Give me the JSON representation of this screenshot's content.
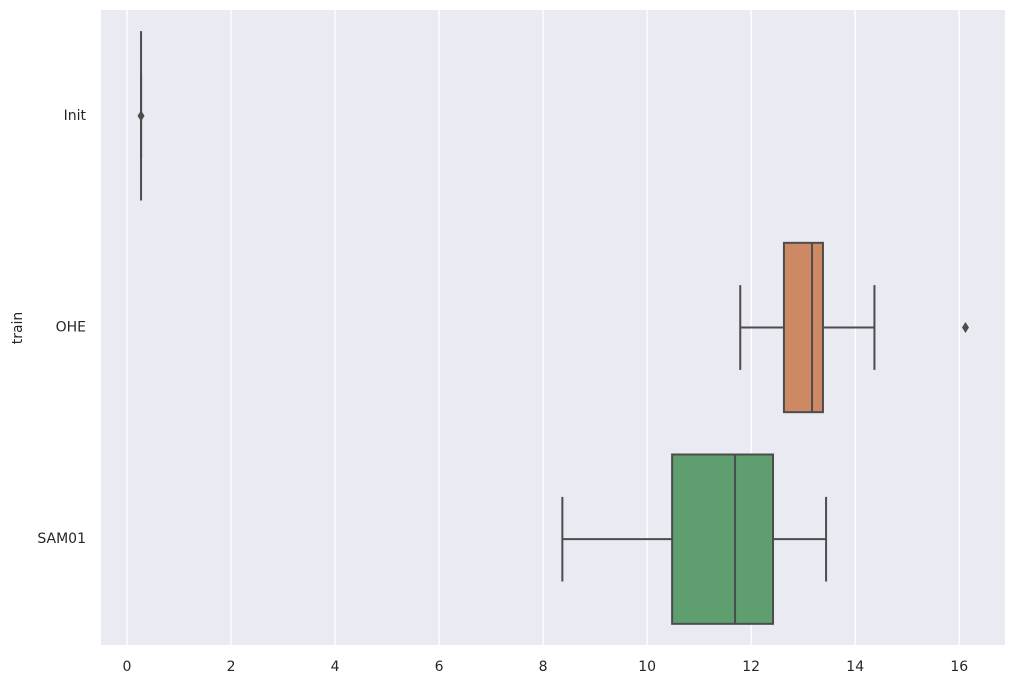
{
  "chart_data": {
    "type": "box",
    "orientation": "horizontal",
    "y_label": "train",
    "categories": [
      "Init",
      "OHE",
      "SAM01"
    ],
    "colors": [
      "#5875a4",
      "#cc8963",
      "#5f9e6e"
    ],
    "min": [
      0.27,
      11.79,
      8.37
    ],
    "q1": [
      0.27,
      12.63,
      10.48
    ],
    "median": [
      0.27,
      13.17,
      11.69
    ],
    "q3": [
      0.27,
      13.38,
      12.42
    ],
    "max": [
      0.27,
      14.37,
      13.44
    ],
    "outliers": [
      [
        0.27
      ],
      [
        16.12
      ],
      []
    ],
    "xlim": [
      -0.5,
      16.88
    ],
    "xticks": [
      0,
      2,
      4,
      6,
      8,
      10,
      12,
      14,
      16
    ],
    "grid": true
  }
}
